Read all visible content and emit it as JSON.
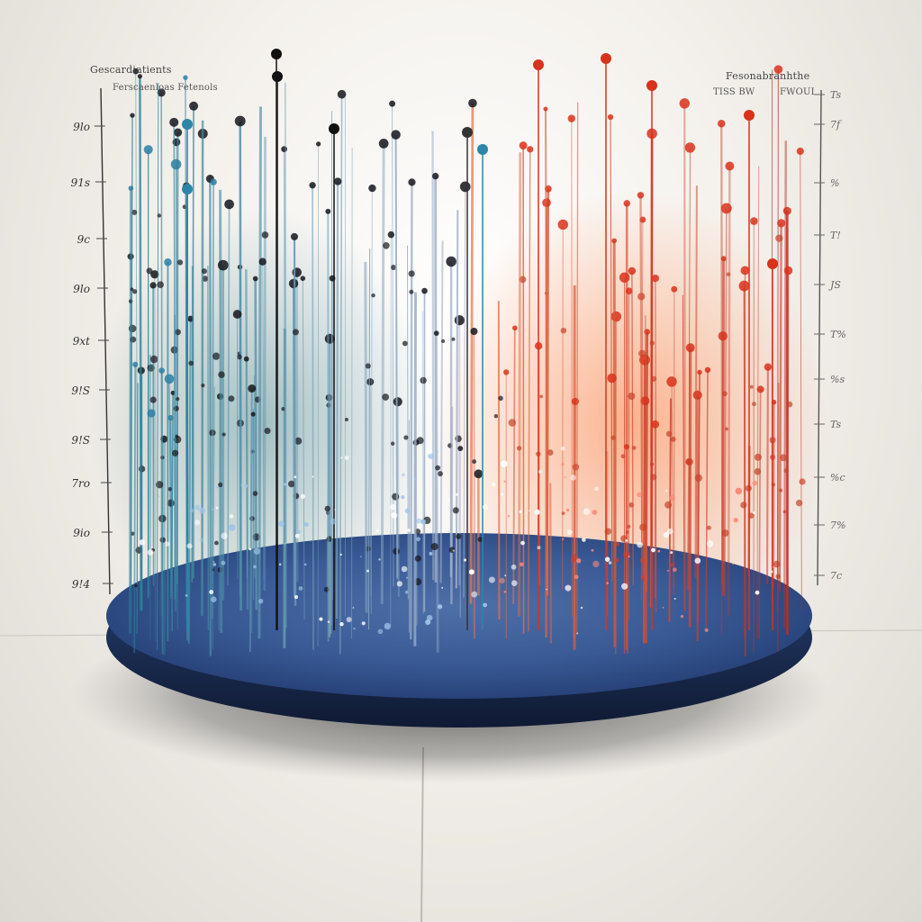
{
  "image": {
    "description_tags": [
      "3d-visualization",
      "scatter-stems",
      "blue-disc-platform"
    ],
    "colors": {
      "background": "#efece7",
      "platform": "#355a93",
      "platform_edge": "#1c2f55",
      "cool_stem": "#2f7f95",
      "dark_dot": "#14161c",
      "warm_stem": "#c2381f",
      "warm_dot": "#d8321c",
      "sparkle": "#ffffff"
    }
  },
  "captions": {
    "top_left_title": "Gescardiatients",
    "top_left_subtitle": "Ferscaenloas Fetenols",
    "top_right_title": "Fesonabranhthe",
    "top_right_subtitle_a": "TISS BW",
    "top_right_subtitle_b": "FWOUI"
  },
  "left_axis_ticks": [
    "9lo",
    "91s",
    "9c",
    "9lo",
    "9xt",
    "9!S",
    "9!S",
    "7ro",
    "9io",
    "9!4"
  ],
  "right_axis_ticks": [
    "Ts",
    "7f",
    "%",
    "T!",
    "JS",
    "T%",
    "%s",
    "Ts",
    "%c",
    "7%",
    "7c"
  ]
}
